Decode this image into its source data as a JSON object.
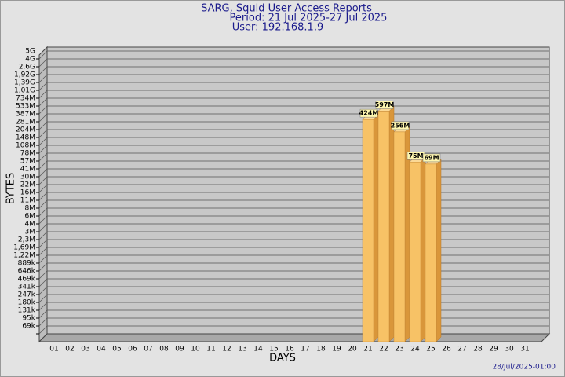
{
  "chart_data": {
    "type": "bar3d",
    "title": "SARG, Squid User Access Reports",
    "subtitle": [
      "Period: 21 Jul 2025-27 Jul 2025",
      "User: 192.168.1.9"
    ],
    "xlabel": "DAYS",
    "ylabel": "BYTES",
    "footnote": "28/Jul/2025-01:00",
    "categories": [
      "01",
      "02",
      "03",
      "04",
      "05",
      "06",
      "07",
      "08",
      "09",
      "10",
      "11",
      "12",
      "13",
      "14",
      "15",
      "16",
      "17",
      "18",
      "19",
      "20",
      "21",
      "22",
      "23",
      "24",
      "25",
      "26",
      "27",
      "28",
      "29",
      "30",
      "31"
    ],
    "values": [
      null,
      null,
      null,
      null,
      null,
      null,
      null,
      null,
      null,
      null,
      null,
      null,
      null,
      null,
      null,
      null,
      null,
      null,
      null,
      null,
      424000000,
      597000000,
      256000000,
      75000000,
      69000000,
      null,
      null,
      null,
      null,
      null,
      null
    ],
    "value_labels": [
      null,
      null,
      null,
      null,
      null,
      null,
      null,
      null,
      null,
      null,
      null,
      null,
      null,
      null,
      null,
      null,
      null,
      null,
      null,
      null,
      "424M",
      "597M",
      "256M",
      "75M",
      "69M",
      null,
      null,
      null,
      null,
      null,
      null
    ],
    "color": "#f7c266",
    "log": true,
    "grid": true,
    "ylim": [
      50000,
      5000000000
    ],
    "yticks": [
      {
        "value": 5000000000,
        "label": "5G"
      },
      {
        "value": 4000000000,
        "label": "4G"
      },
      {
        "value": 2600000000,
        "label": "2,6G"
      },
      {
        "value": 1920000000,
        "label": "1,92G"
      },
      {
        "value": 1390000000,
        "label": "1,39G"
      },
      {
        "value": 1010000000,
        "label": "1,01G"
      },
      {
        "value": 734000000,
        "label": "734M"
      },
      {
        "value": 533000000,
        "label": "533M"
      },
      {
        "value": 387000000,
        "label": "387M"
      },
      {
        "value": 281000000,
        "label": "281M"
      },
      {
        "value": 204000000,
        "label": "204M"
      },
      {
        "value": 148000000,
        "label": "148M"
      },
      {
        "value": 108000000,
        "label": "108M"
      },
      {
        "value": 78000000,
        "label": "78M"
      },
      {
        "value": 57000000,
        "label": "57M"
      },
      {
        "value": 41000000,
        "label": "41M"
      },
      {
        "value": 30000000,
        "label": "30M"
      },
      {
        "value": 22000000,
        "label": "22M"
      },
      {
        "value": 16000000,
        "label": "16M"
      },
      {
        "value": 11000000,
        "label": "11M"
      },
      {
        "value": 8000000,
        "label": "8M"
      },
      {
        "value": 6000000,
        "label": "6M"
      },
      {
        "value": 4000000,
        "label": "4M"
      },
      {
        "value": 3000000,
        "label": "3M"
      },
      {
        "value": 2300000,
        "label": "2,3M"
      },
      {
        "value": 1690000,
        "label": "1,69M"
      },
      {
        "value": 1220000,
        "label": "1,22M"
      },
      {
        "value": 889000,
        "label": "889k"
      },
      {
        "value": 646000,
        "label": "646k"
      },
      {
        "value": 469000,
        "label": "469k"
      },
      {
        "value": 341000,
        "label": "341k"
      },
      {
        "value": 247000,
        "label": "247k"
      },
      {
        "value": 180000,
        "label": "180k"
      },
      {
        "value": 131000,
        "label": "131k"
      },
      {
        "value": 95000,
        "label": "95k"
      },
      {
        "value": 69000,
        "label": "69k"
      }
    ]
  }
}
